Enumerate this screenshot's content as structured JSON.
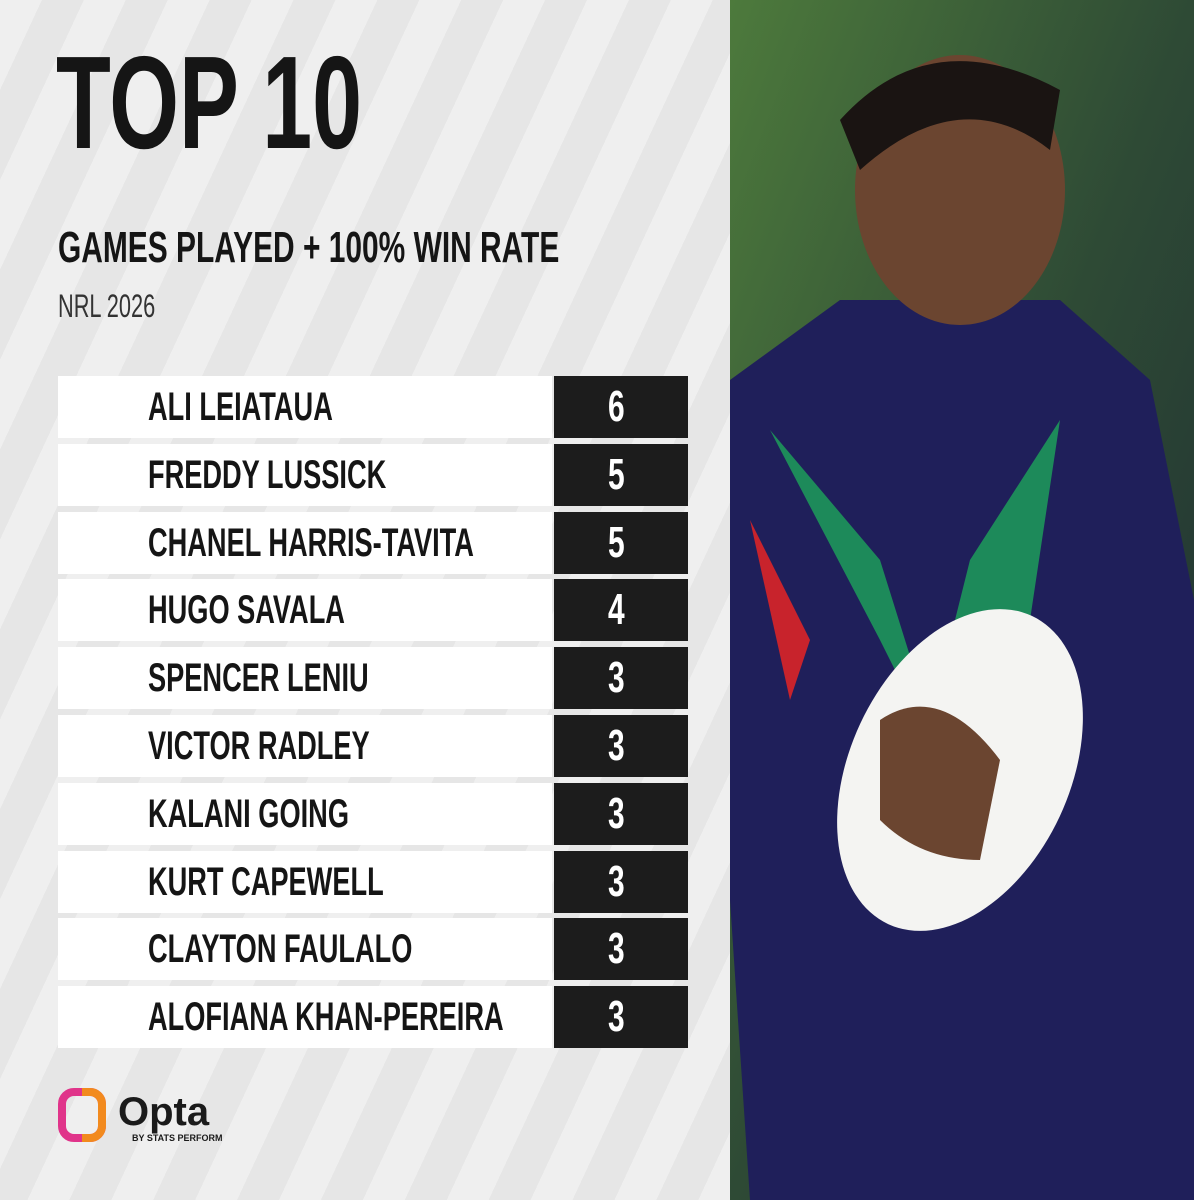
{
  "header": {
    "title": "TOP 10",
    "subtitle": "GAMES PLAYED + 100% WIN RATE",
    "season": "NRL 2026"
  },
  "table": {
    "rows": [
      [
        "ALI LEIATAUA",
        6
      ],
      [
        "FREDDY LUSSICK",
        5
      ],
      [
        "CHANEL HARRIS-TAVITA",
        5
      ],
      [
        "HUGO SAVALA",
        4
      ],
      [
        "SPENCER LENIU",
        3
      ],
      [
        "VICTOR RADLEY",
        3
      ],
      [
        "KALANI GOING",
        3
      ],
      [
        "KURT CAPEWELL",
        3
      ],
      [
        "CLAYTON FAULALO",
        3
      ],
      [
        "ALOFIANA KHAN-PEREIRA",
        3
      ]
    ]
  },
  "footer": {
    "brand": "Opta",
    "tagline": "BY STATS PERFORM"
  }
}
